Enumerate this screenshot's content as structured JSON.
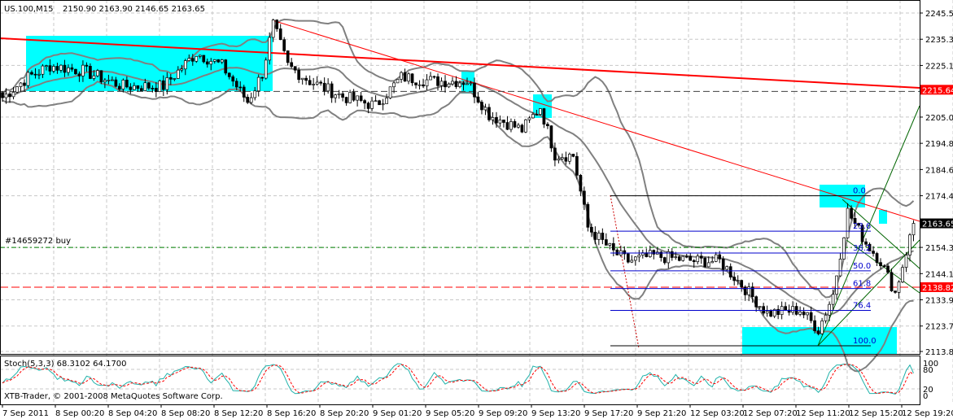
{
  "header": {
    "symbol": "US.100,M15",
    "ohlc": "2150.90 2163.90 2146.65 2163.65"
  },
  "order_label": "#14659272 buy",
  "stoch_label": "Stoch(5,3,3) 68.3102 64.1700",
  "copyright": "XTB-Trader, © 2001-2008 MetaQuotes Software Corp.",
  "colors": {
    "bull": "#ffffff",
    "bear": "#000000",
    "band": "#808080",
    "trend": "#ff0000",
    "fib": "#0000cc",
    "zone": "#00ffff",
    "channel": "#006400",
    "stoch_main": "#20b2aa",
    "stoch_signal": "#ff0000"
  },
  "chart_data": {
    "type": "candlestick",
    "title": "US.100,M15",
    "ylim": [
      2113.8,
      2245.5
    ],
    "price_ticks": [
      "2245.50",
      "2235.30",
      "2225.10",
      "2205.00",
      "2194.80",
      "2184.60",
      "2174.40",
      "2154.30",
      "2144.10",
      "2133.90",
      "2123.70",
      "2113.80"
    ],
    "price_markers": [
      {
        "label": "2215.64",
        "value": 2215.64,
        "color": "#ff0000"
      },
      {
        "label": "2163.65",
        "value": 2163.65,
        "color": "#000000"
      },
      {
        "label": "2138.82",
        "value": 2138.82,
        "color": "#ff0000"
      }
    ],
    "order_level": 2154.3,
    "time_ticks": [
      "7 Sep 2011",
      "8 Sep 00:20",
      "8 Sep 04:20",
      "8 Sep 08:20",
      "8 Sep 12:20",
      "8 Sep 16:20",
      "8 Sep 20:20",
      "9 Sep 01:20",
      "9 Sep 05:20",
      "9 Sep 09:20",
      "9 Sep 13:20",
      "9 Sep 17:20",
      "9 Sep 21:20",
      "12 Sep 03:20",
      "12 Sep 07:20",
      "12 Sep 11:20",
      "12 Sep 15:20",
      "12 Sep 19:20"
    ],
    "candle_count": 250,
    "close_path": [
      [
        0,
        2212.6
      ],
      [
        7,
        2220.5
      ],
      [
        13,
        2225
      ],
      [
        22,
        2223
      ],
      [
        33,
        2217
      ],
      [
        44,
        2217
      ],
      [
        53,
        2230
      ],
      [
        60,
        2225
      ],
      [
        67,
        2211
      ],
      [
        71,
        2222
      ],
      [
        74,
        2241
      ],
      [
        78,
        2225
      ],
      [
        84,
        2219
      ],
      [
        93,
        2213
      ],
      [
        102,
        2209.4
      ],
      [
        109,
        2220.5
      ],
      [
        118,
        2219
      ],
      [
        127,
        2219
      ],
      [
        133,
        2206
      ],
      [
        142,
        2200
      ],
      [
        147,
        2209
      ],
      [
        151,
        2190.4
      ],
      [
        156,
        2190
      ],
      [
        160,
        2162
      ],
      [
        167,
        2152.4
      ],
      [
        171,
        2149
      ],
      [
        178,
        2151
      ],
      [
        189,
        2149
      ],
      [
        196,
        2149
      ],
      [
        202,
        2139.8
      ],
      [
        209,
        2128.7
      ],
      [
        218,
        2130
      ],
      [
        223,
        2122.4
      ],
      [
        227,
        2136
      ],
      [
        231,
        2168.3
      ],
      [
        236,
        2156
      ],
      [
        240,
        2149
      ],
      [
        244,
        2136.6
      ],
      [
        248,
        2158
      ],
      [
        250,
        2163.65
      ]
    ],
    "fibonacci": {
      "levels": [
        "0.0",
        "23.6",
        "38.2",
        "50.0",
        "61.8",
        "76.4",
        "100.0"
      ],
      "high": 2174.4,
      "low": 2116.0
    },
    "stochastic": {
      "k": 5,
      "d": 3,
      "slowing": 3,
      "main": 68.3102,
      "signal": 64.17,
      "ylim": [
        0,
        100
      ],
      "ticks": [
        "100",
        "80",
        "20",
        "0"
      ]
    }
  }
}
